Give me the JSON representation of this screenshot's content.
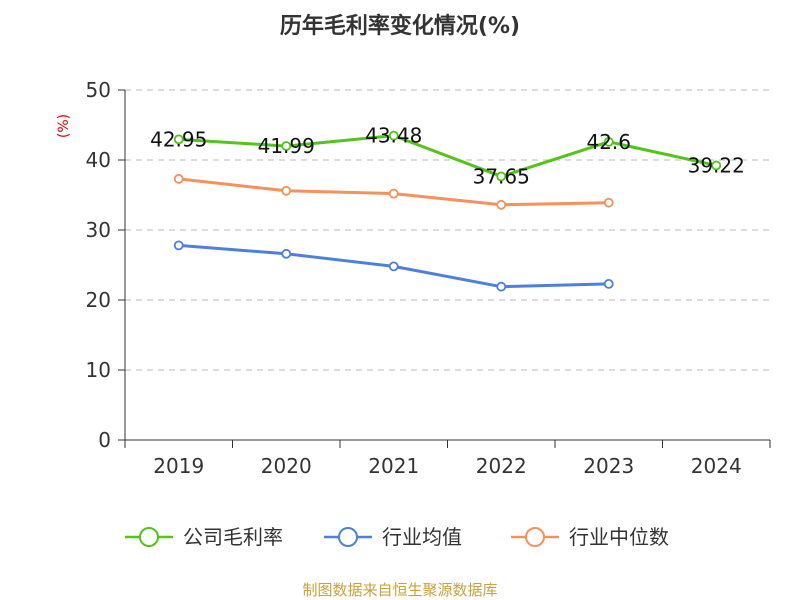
{
  "chart_data": {
    "type": "line",
    "title": "历年毛利率变化情况(%)",
    "ylabel": "(%)",
    "categories": [
      "2019",
      "2020",
      "2021",
      "2022",
      "2023",
      "2024"
    ],
    "ylim": [
      0,
      50
    ],
    "yticks": [
      0,
      10,
      20,
      30,
      40,
      50
    ],
    "grid": true,
    "legend_position": "bottom",
    "series": [
      {
        "name": "公司毛利率",
        "color": "#52c41a",
        "values": [
          42.95,
          41.99,
          43.48,
          37.65,
          42.6,
          39.22
        ],
        "labels": [
          "42.95",
          "41.99",
          "43.48",
          "37.65",
          "42.6",
          "39.22"
        ]
      },
      {
        "name": "行业均值",
        "color": "#4e7fdc",
        "values": [
          27.8,
          26.6,
          24.8,
          21.9,
          22.3,
          null
        ]
      },
      {
        "name": "行业中位数",
        "color": "#f5915b",
        "values": [
          37.3,
          35.6,
          35.2,
          33.6,
          33.9,
          null
        ]
      }
    ],
    "source": "制图数据来自恒生聚源数据库"
  }
}
